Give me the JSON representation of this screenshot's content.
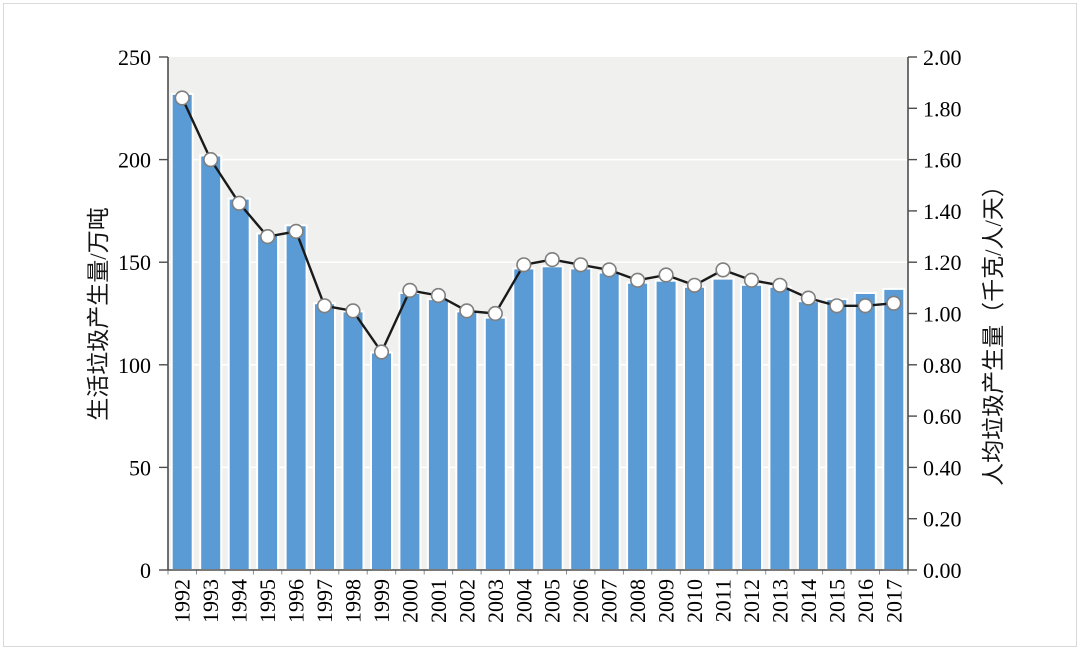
{
  "window": {
    "background": "#FFFFFF",
    "border_color": "#D9D9D9"
  },
  "chart_data": {
    "type": "bar+line",
    "categories": [
      "1992",
      "1993",
      "1994",
      "1995",
      "1996",
      "1997",
      "1998",
      "1999",
      "2000",
      "2001",
      "2002",
      "2003",
      "2004",
      "2005",
      "2006",
      "2007",
      "2008",
      "2009",
      "2010",
      "2011",
      "2012",
      "2013",
      "2014",
      "2015",
      "2016",
      "2017"
    ],
    "series": [
      {
        "name": "生活垃圾产生量",
        "type": "bar",
        "axis": "left",
        "unit": "万吨",
        "color": "#5B9BD5",
        "bar_border_color": "#FFFFFF",
        "values": [
          232,
          202,
          181,
          164,
          168,
          130,
          126,
          106,
          135,
          132,
          126,
          123,
          147,
          148,
          147,
          145,
          140,
          141,
          138,
          142,
          139,
          138,
          131,
          132,
          135,
          137
        ]
      },
      {
        "name": "人均垃圾产生量",
        "type": "line",
        "axis": "right",
        "unit": "千克/人/天",
        "color": "#1A1A1A",
        "marker": "circle",
        "marker_fill": "#FFFFFF",
        "marker_stroke": "#7F7F7F",
        "values": [
          1.84,
          1.6,
          1.43,
          1.3,
          1.32,
          1.03,
          1.01,
          0.85,
          1.09,
          1.07,
          1.01,
          1.0,
          1.19,
          1.21,
          1.19,
          1.17,
          1.13,
          1.15,
          1.11,
          1.17,
          1.13,
          1.11,
          1.06,
          1.03,
          1.03,
          1.04
        ]
      }
    ],
    "left_axis": {
      "label": "生活垃圾产生量/万吨",
      "min": 0,
      "max": 250,
      "step": 50,
      "tick_labels": [
        "0",
        "50",
        "100",
        "150",
        "200",
        "250"
      ]
    },
    "right_axis": {
      "label": "人均垃圾产生量（千克/人/天）",
      "min": 0,
      "max": 2,
      "step": 0.2,
      "tick_labels": [
        "0.00",
        "0.20",
        "0.40",
        "0.60",
        "0.80",
        "1.00",
        "1.20",
        "1.40",
        "1.60",
        "1.80",
        "2.00"
      ]
    },
    "x_axis": {
      "tick_label_rotation": -90
    },
    "plot": {
      "background": "#F0F0EF",
      "gridline_color": "#FFFFFF",
      "axis_color": "#4D4D4D",
      "text_color": "#000000",
      "grid": "on"
    },
    "legend": "none"
  }
}
